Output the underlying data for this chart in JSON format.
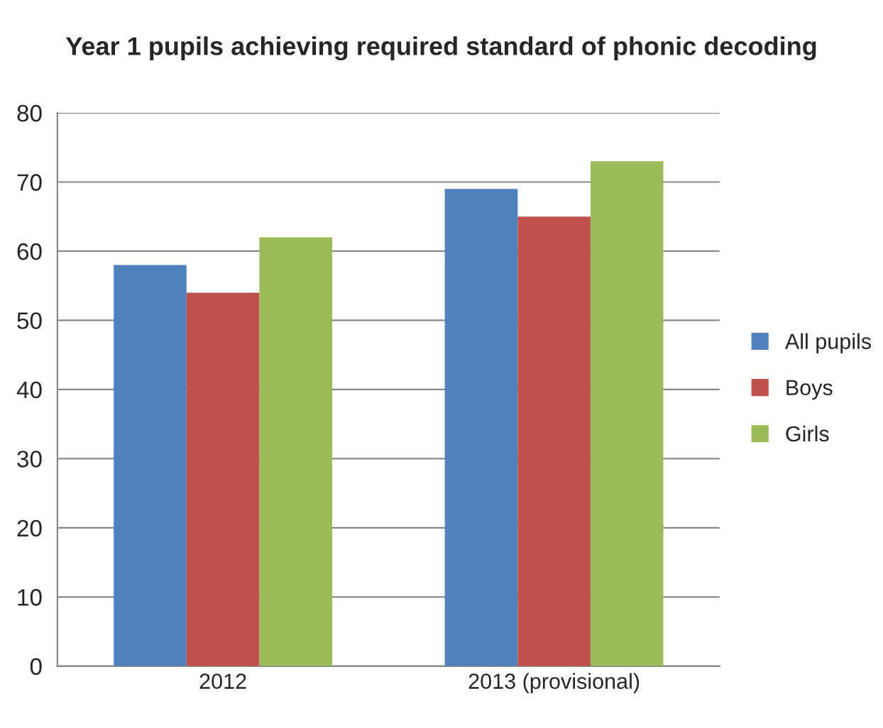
{
  "chart_data": {
    "type": "bar",
    "title": "Year 1 pupils achieving required standard of phonic decoding",
    "categories": [
      "2012",
      "2013 (provisional)"
    ],
    "series": [
      {
        "name": "All pupils",
        "color": "#4f81bd",
        "values": [
          58,
          69
        ]
      },
      {
        "name": "Boys",
        "color": "#c0504d",
        "values": [
          54,
          65
        ]
      },
      {
        "name": "Girls",
        "color": "#9bbb59",
        "values": [
          62,
          73
        ]
      }
    ],
    "ylim": [
      0,
      80
    ],
    "yticks": [
      0,
      10,
      20,
      30,
      40,
      50,
      60,
      70,
      80
    ],
    "grid": "y",
    "legend": "right"
  }
}
